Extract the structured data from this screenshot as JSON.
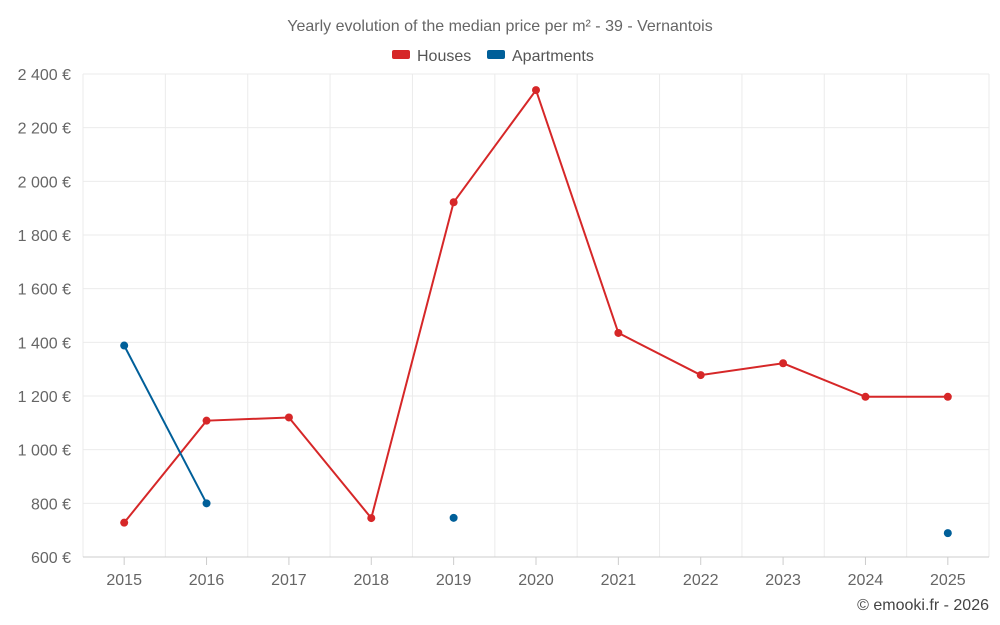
{
  "chart_data": {
    "type": "line",
    "title": "Yearly evolution of the median price per m² - 39 - Vernantois",
    "xlabel": "",
    "ylabel": "",
    "x": [
      "2015",
      "2016",
      "2017",
      "2018",
      "2019",
      "2020",
      "2021",
      "2022",
      "2023",
      "2024",
      "2025"
    ],
    "ylim": [
      600,
      2400
    ],
    "yticks": [
      600,
      800,
      1000,
      1200,
      1400,
      1600,
      1800,
      2000,
      2200,
      2400
    ],
    "ytick_labels": [
      "600 €",
      "800 €",
      "1 000 €",
      "1 200 €",
      "1 400 €",
      "1 600 €",
      "1 800 €",
      "2 000 €",
      "2 200 €",
      "2 400 €"
    ],
    "grid": true,
    "legend_position": "top-center",
    "series": [
      {
        "name": "Houses",
        "color": "#d62728",
        "values": [
          728,
          1108,
          1120,
          745,
          1922,
          2340,
          1435,
          1278,
          1322,
          1197,
          1197
        ]
      },
      {
        "name": "Apartments",
        "color": "#005f99",
        "values": [
          1388,
          800,
          null,
          null,
          746,
          null,
          null,
          null,
          null,
          null,
          689
        ]
      }
    ]
  },
  "credit": "© emooki.fr - 2026"
}
